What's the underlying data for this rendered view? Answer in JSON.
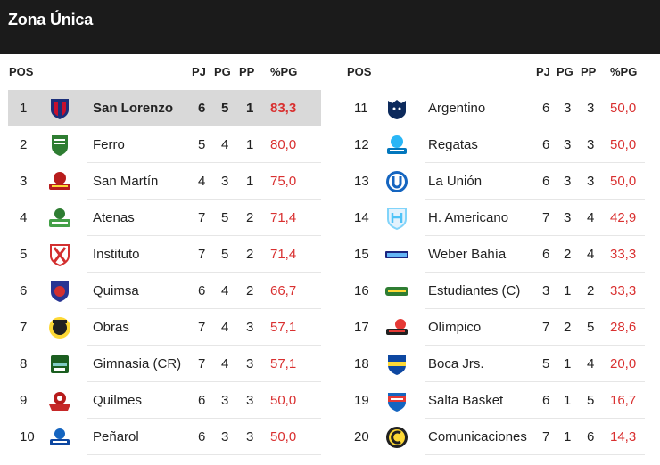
{
  "header": {
    "title": "Zona Única"
  },
  "columns": {
    "pos": "POS",
    "pj": "PJ",
    "pg": "PG",
    "pp": "PP",
    "pct": "%PG"
  },
  "colors": {
    "header_bg": "#1b1b1b",
    "highlight_bg": "#d9d9d9",
    "percent_text": "#d93030"
  },
  "left_table": [
    {
      "pos": "1",
      "team": "San Lorenzo",
      "pj": "6",
      "pg": "5",
      "pp": "1",
      "pct": "83,3",
      "icon": "san-lorenzo-logo-icon",
      "highlight": true
    },
    {
      "pos": "2",
      "team": "Ferro",
      "pj": "5",
      "pg": "4",
      "pp": "1",
      "pct": "80,0",
      "icon": "ferro-logo-icon"
    },
    {
      "pos": "3",
      "team": "San Martín",
      "pj": "4",
      "pg": "3",
      "pp": "1",
      "pct": "75,0",
      "icon": "san-martin-logo-icon"
    },
    {
      "pos": "4",
      "team": "Atenas",
      "pj": "7",
      "pg": "5",
      "pp": "2",
      "pct": "71,4",
      "icon": "atenas-logo-icon"
    },
    {
      "pos": "5",
      "team": "Instituto",
      "pj": "7",
      "pg": "5",
      "pp": "2",
      "pct": "71,4",
      "icon": "instituto-logo-icon"
    },
    {
      "pos": "6",
      "team": "Quimsa",
      "pj": "6",
      "pg": "4",
      "pp": "2",
      "pct": "66,7",
      "icon": "quimsa-logo-icon"
    },
    {
      "pos": "7",
      "team": "Obras",
      "pj": "7",
      "pg": "4",
      "pp": "3",
      "pct": "57,1",
      "icon": "obras-logo-icon"
    },
    {
      "pos": "8",
      "team": "Gimnasia (CR)",
      "pj": "7",
      "pg": "4",
      "pp": "3",
      "pct": "57,1",
      "icon": "gimnasia-logo-icon"
    },
    {
      "pos": "9",
      "team": "Quilmes",
      "pj": "6",
      "pg": "3",
      "pp": "3",
      "pct": "50,0",
      "icon": "quilmes-logo-icon"
    },
    {
      "pos": "10",
      "team": "Peñarol",
      "pj": "6",
      "pg": "3",
      "pp": "3",
      "pct": "50,0",
      "icon": "penarol-logo-icon"
    }
  ],
  "right_table": [
    {
      "pos": "11",
      "team": "Argentino",
      "pj": "6",
      "pg": "3",
      "pp": "3",
      "pct": "50,0",
      "icon": "argentino-logo-icon"
    },
    {
      "pos": "12",
      "team": "Regatas",
      "pj": "6",
      "pg": "3",
      "pp": "3",
      "pct": "50,0",
      "icon": "regatas-logo-icon"
    },
    {
      "pos": "13",
      "team": "La Unión",
      "pj": "6",
      "pg": "3",
      "pp": "3",
      "pct": "50,0",
      "icon": "la-union-logo-icon"
    },
    {
      "pos": "14",
      "team": "H. Americano",
      "pj": "7",
      "pg": "3",
      "pp": "4",
      "pct": "42,9",
      "icon": "hispano-americano-logo-icon"
    },
    {
      "pos": "15",
      "team": "Weber Bahía",
      "pj": "6",
      "pg": "2",
      "pp": "4",
      "pct": "33,3",
      "icon": "weber-bahia-logo-icon"
    },
    {
      "pos": "16",
      "team": "Estudiantes (C)",
      "pj": "3",
      "pg": "1",
      "pp": "2",
      "pct": "33,3",
      "icon": "estudiantes-logo-icon"
    },
    {
      "pos": "17",
      "team": "Olímpico",
      "pj": "7",
      "pg": "2",
      "pp": "5",
      "pct": "28,6",
      "icon": "olimpico-logo-icon"
    },
    {
      "pos": "18",
      "team": "Boca Jrs.",
      "pj": "5",
      "pg": "1",
      "pp": "4",
      "pct": "20,0",
      "icon": "boca-logo-icon"
    },
    {
      "pos": "19",
      "team": "Salta Basket",
      "pj": "6",
      "pg": "1",
      "pp": "5",
      "pct": "16,7",
      "icon": "salta-basket-logo-icon"
    },
    {
      "pos": "20",
      "team": "Comunicaciones",
      "pj": "7",
      "pg": "1",
      "pp": "6",
      "pct": "14,3",
      "icon": "comunicaciones-logo-icon"
    }
  ]
}
